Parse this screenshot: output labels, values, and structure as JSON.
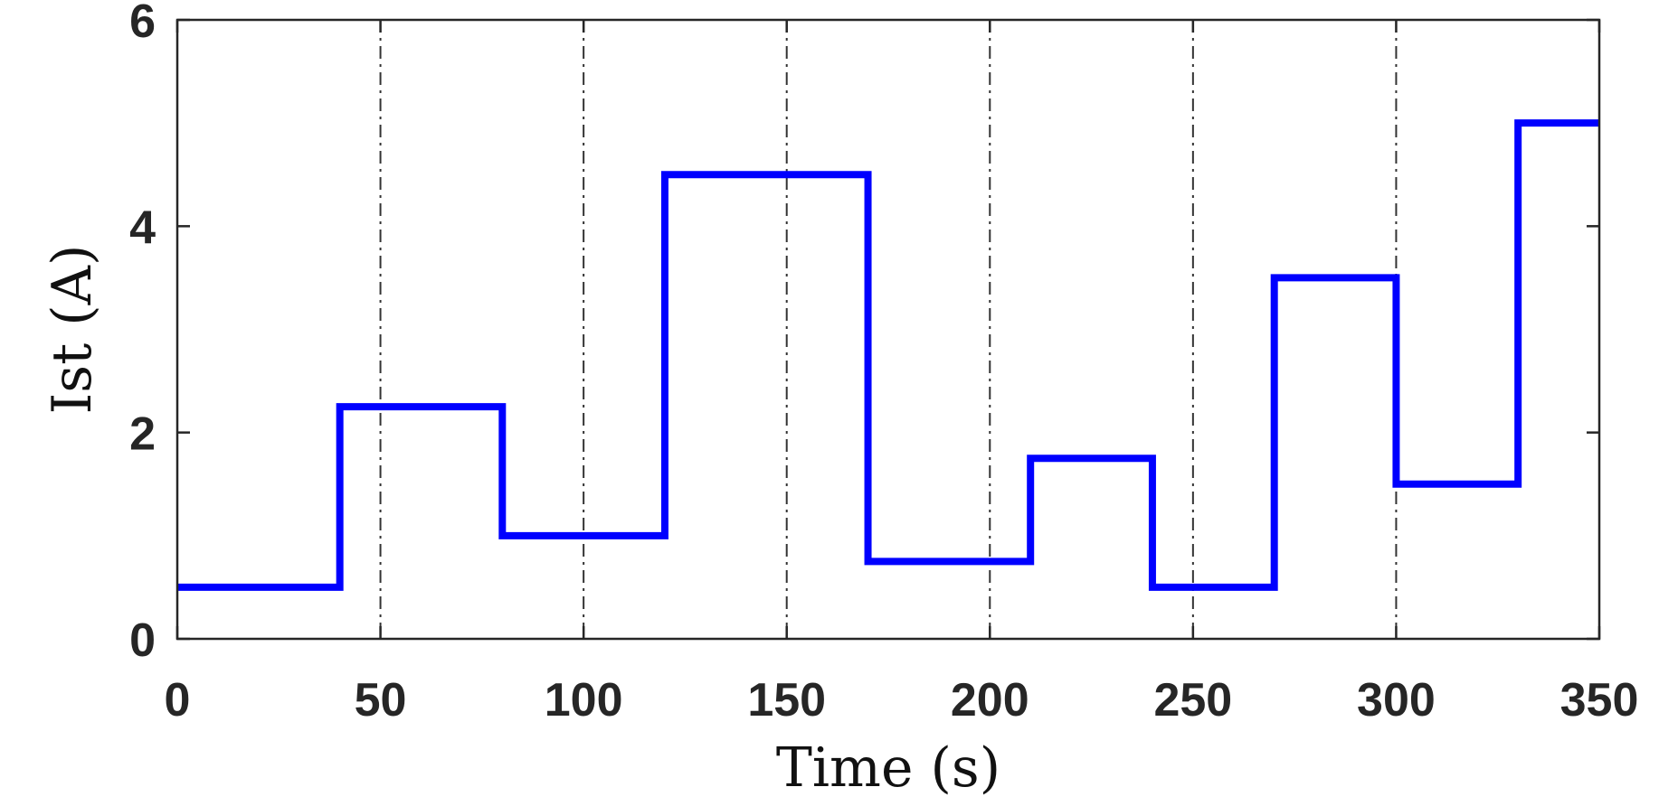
{
  "chart_data": {
    "type": "line",
    "step": true,
    "title": "",
    "xlabel": "Time (s)",
    "ylabel": "Ist (A)",
    "xlim": [
      0,
      350
    ],
    "ylim": [
      0,
      6
    ],
    "xticks": [
      0,
      50,
      100,
      150,
      200,
      250,
      300,
      350
    ],
    "yticks": [
      0,
      2,
      4,
      6
    ],
    "vertical_gridlines": [
      50,
      100,
      150,
      200,
      250,
      300
    ],
    "grid_style": "dash-dot, x only",
    "series": [
      {
        "color": "#0000ff",
        "x": [
          0,
          40,
          40,
          80,
          80,
          120,
          120,
          170,
          170,
          210,
          210,
          240,
          240,
          270,
          270,
          300,
          300,
          330,
          330,
          350
        ],
        "y": [
          0.5,
          0.5,
          2.25,
          2.25,
          1.0,
          1.0,
          4.5,
          4.5,
          0.75,
          0.75,
          1.75,
          1.75,
          0.5,
          0.5,
          3.5,
          3.5,
          1.5,
          1.5,
          5.0,
          5.0
        ]
      }
    ]
  }
}
